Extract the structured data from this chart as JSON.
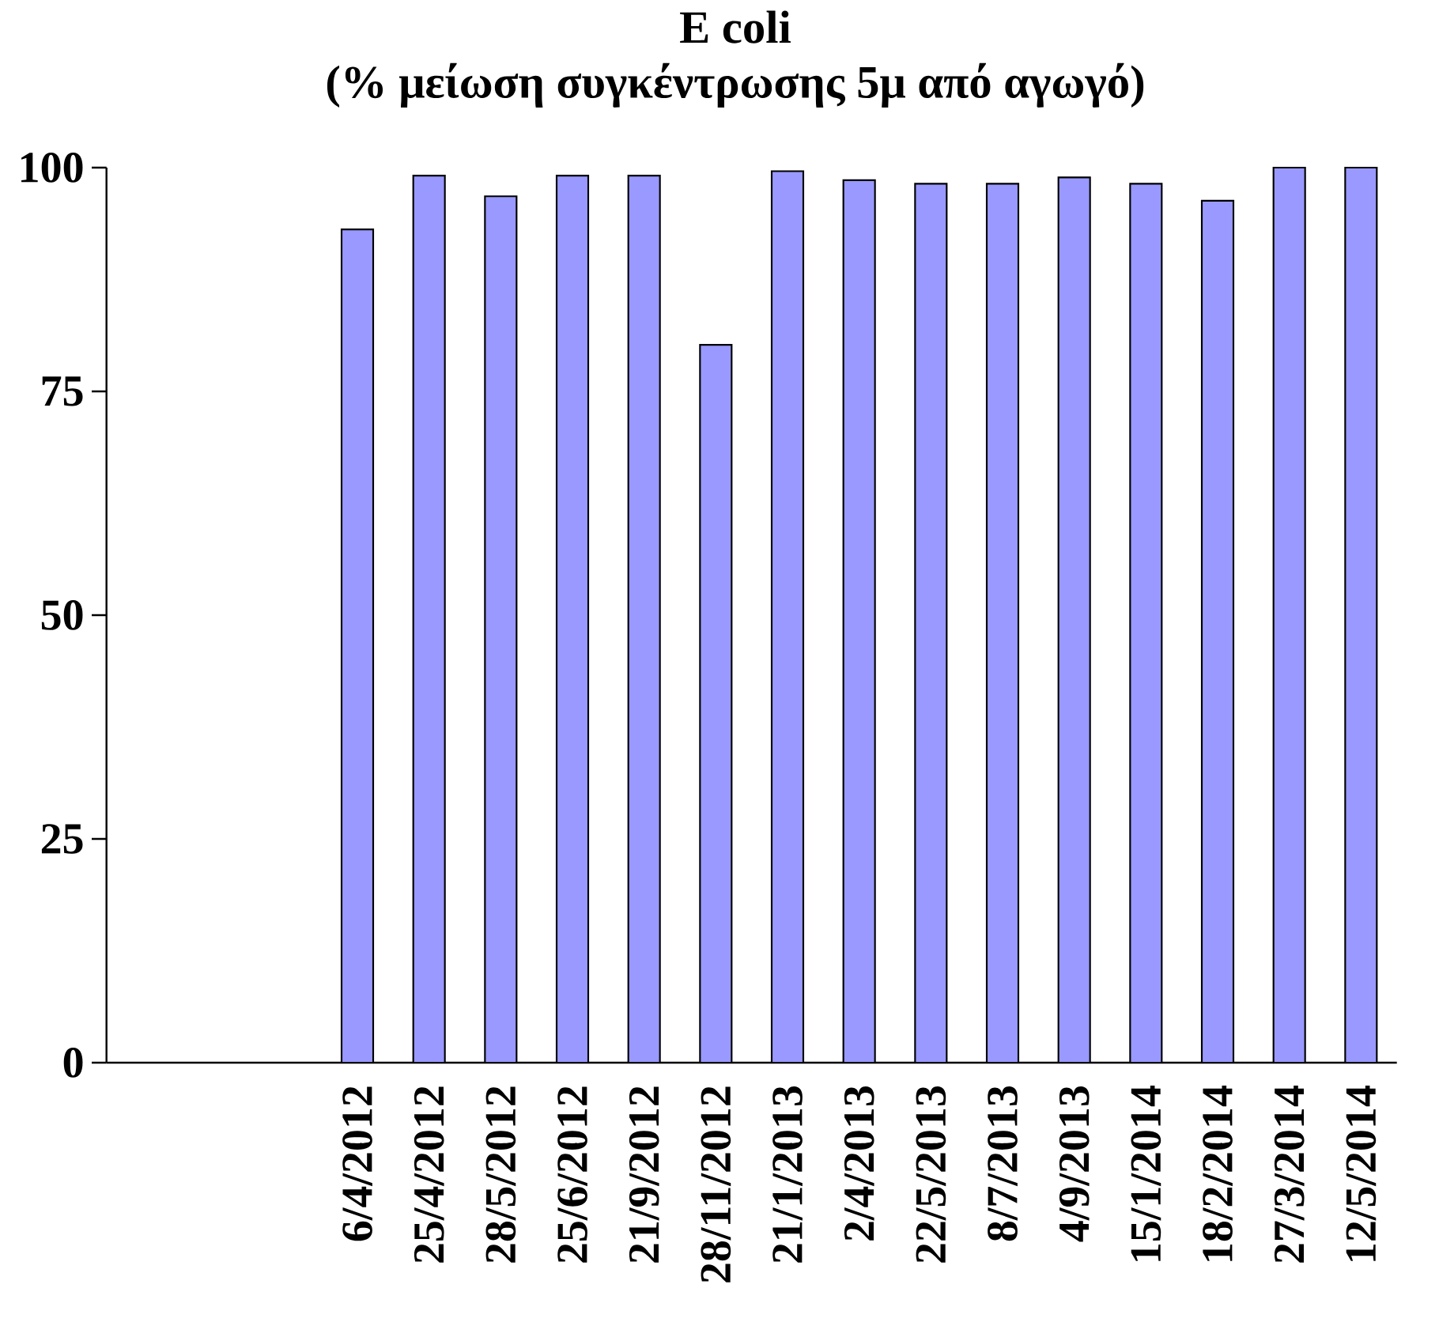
{
  "chart_data": {
    "type": "bar",
    "title": "E coli",
    "subtitle": "(% μείωση συγκέντρωσης 5μ από αγωγό)",
    "categories": [
      null,
      null,
      null,
      "6/4/2012",
      "25/4/2012",
      "28/5/2012",
      "25/6/2012",
      "21/9/2012",
      "28/11/2012",
      "21/1/2013",
      "2/4/2013",
      "22/5/2013",
      "8/7/2013",
      "4/9/2013",
      "15/1/2014",
      "18/2/2014",
      "27/3/2014",
      "12/5/2014"
    ],
    "values": [
      null,
      null,
      null,
      93.1,
      99.1,
      96.8,
      99.1,
      99.1,
      80.2,
      99.6,
      98.6,
      98.2,
      98.2,
      98.9,
      98.2,
      96.3,
      100,
      100
    ],
    "color": "#9999ff",
    "ylim": [
      0,
      100
    ],
    "yticks": [
      0,
      25,
      50,
      75,
      100
    ]
  }
}
